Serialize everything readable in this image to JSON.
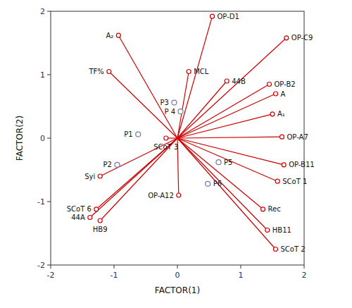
{
  "chart_data": {
    "type": "biplot",
    "x_label": "FACTOR(1)",
    "y_label": "FACTOR(2)",
    "xlim": [
      -2,
      2
    ],
    "ylim": [
      -2,
      2
    ],
    "xticks": [
      -2,
      -1,
      0,
      1,
      2
    ],
    "yticks": [
      -2,
      -1,
      0,
      1,
      2
    ],
    "grid": false,
    "series": [
      {
        "type": "vector",
        "color": "#CC0000",
        "marker": "circle",
        "labels": [
          "OP-D1",
          "OP-C9",
          "A₂",
          "TF%",
          "MCL",
          "44B",
          "OP-B2",
          "A",
          "A₁",
          "OP-A7",
          "SCoT 3",
          "OP-B11",
          "SCoT 1",
          "OP-A12",
          "Rec",
          "HB11",
          "SCoT 2",
          "Syi",
          "SCoT 6",
          "44A",
          "HB9"
        ],
        "x": [
          0.55,
          1.72,
          -0.93,
          -1.08,
          0.18,
          0.78,
          1.45,
          1.55,
          1.5,
          1.65,
          -0.18,
          1.68,
          1.58,
          0.02,
          1.35,
          1.42,
          1.55,
          -1.22,
          -1.28,
          -1.38,
          -1.22
        ],
        "values": [
          1.92,
          1.58,
          1.62,
          1.05,
          1.05,
          0.9,
          0.85,
          0.7,
          0.38,
          0.02,
          0.0,
          -0.42,
          -0.68,
          -0.9,
          -1.12,
          -1.45,
          -1.75,
          -0.6,
          -1.12,
          -1.25,
          -1.3
        ]
      },
      {
        "type": "scatter",
        "color": "#7777AA",
        "marker": "circle",
        "labels": [
          "P1",
          "P2",
          "P3",
          "P 4",
          "P5",
          "P6"
        ],
        "x": [
          -0.62,
          -0.95,
          -0.05,
          0.05,
          0.65,
          0.48
        ],
        "values": [
          0.06,
          -0.42,
          0.56,
          0.42,
          -0.38,
          -0.72
        ]
      }
    ]
  }
}
